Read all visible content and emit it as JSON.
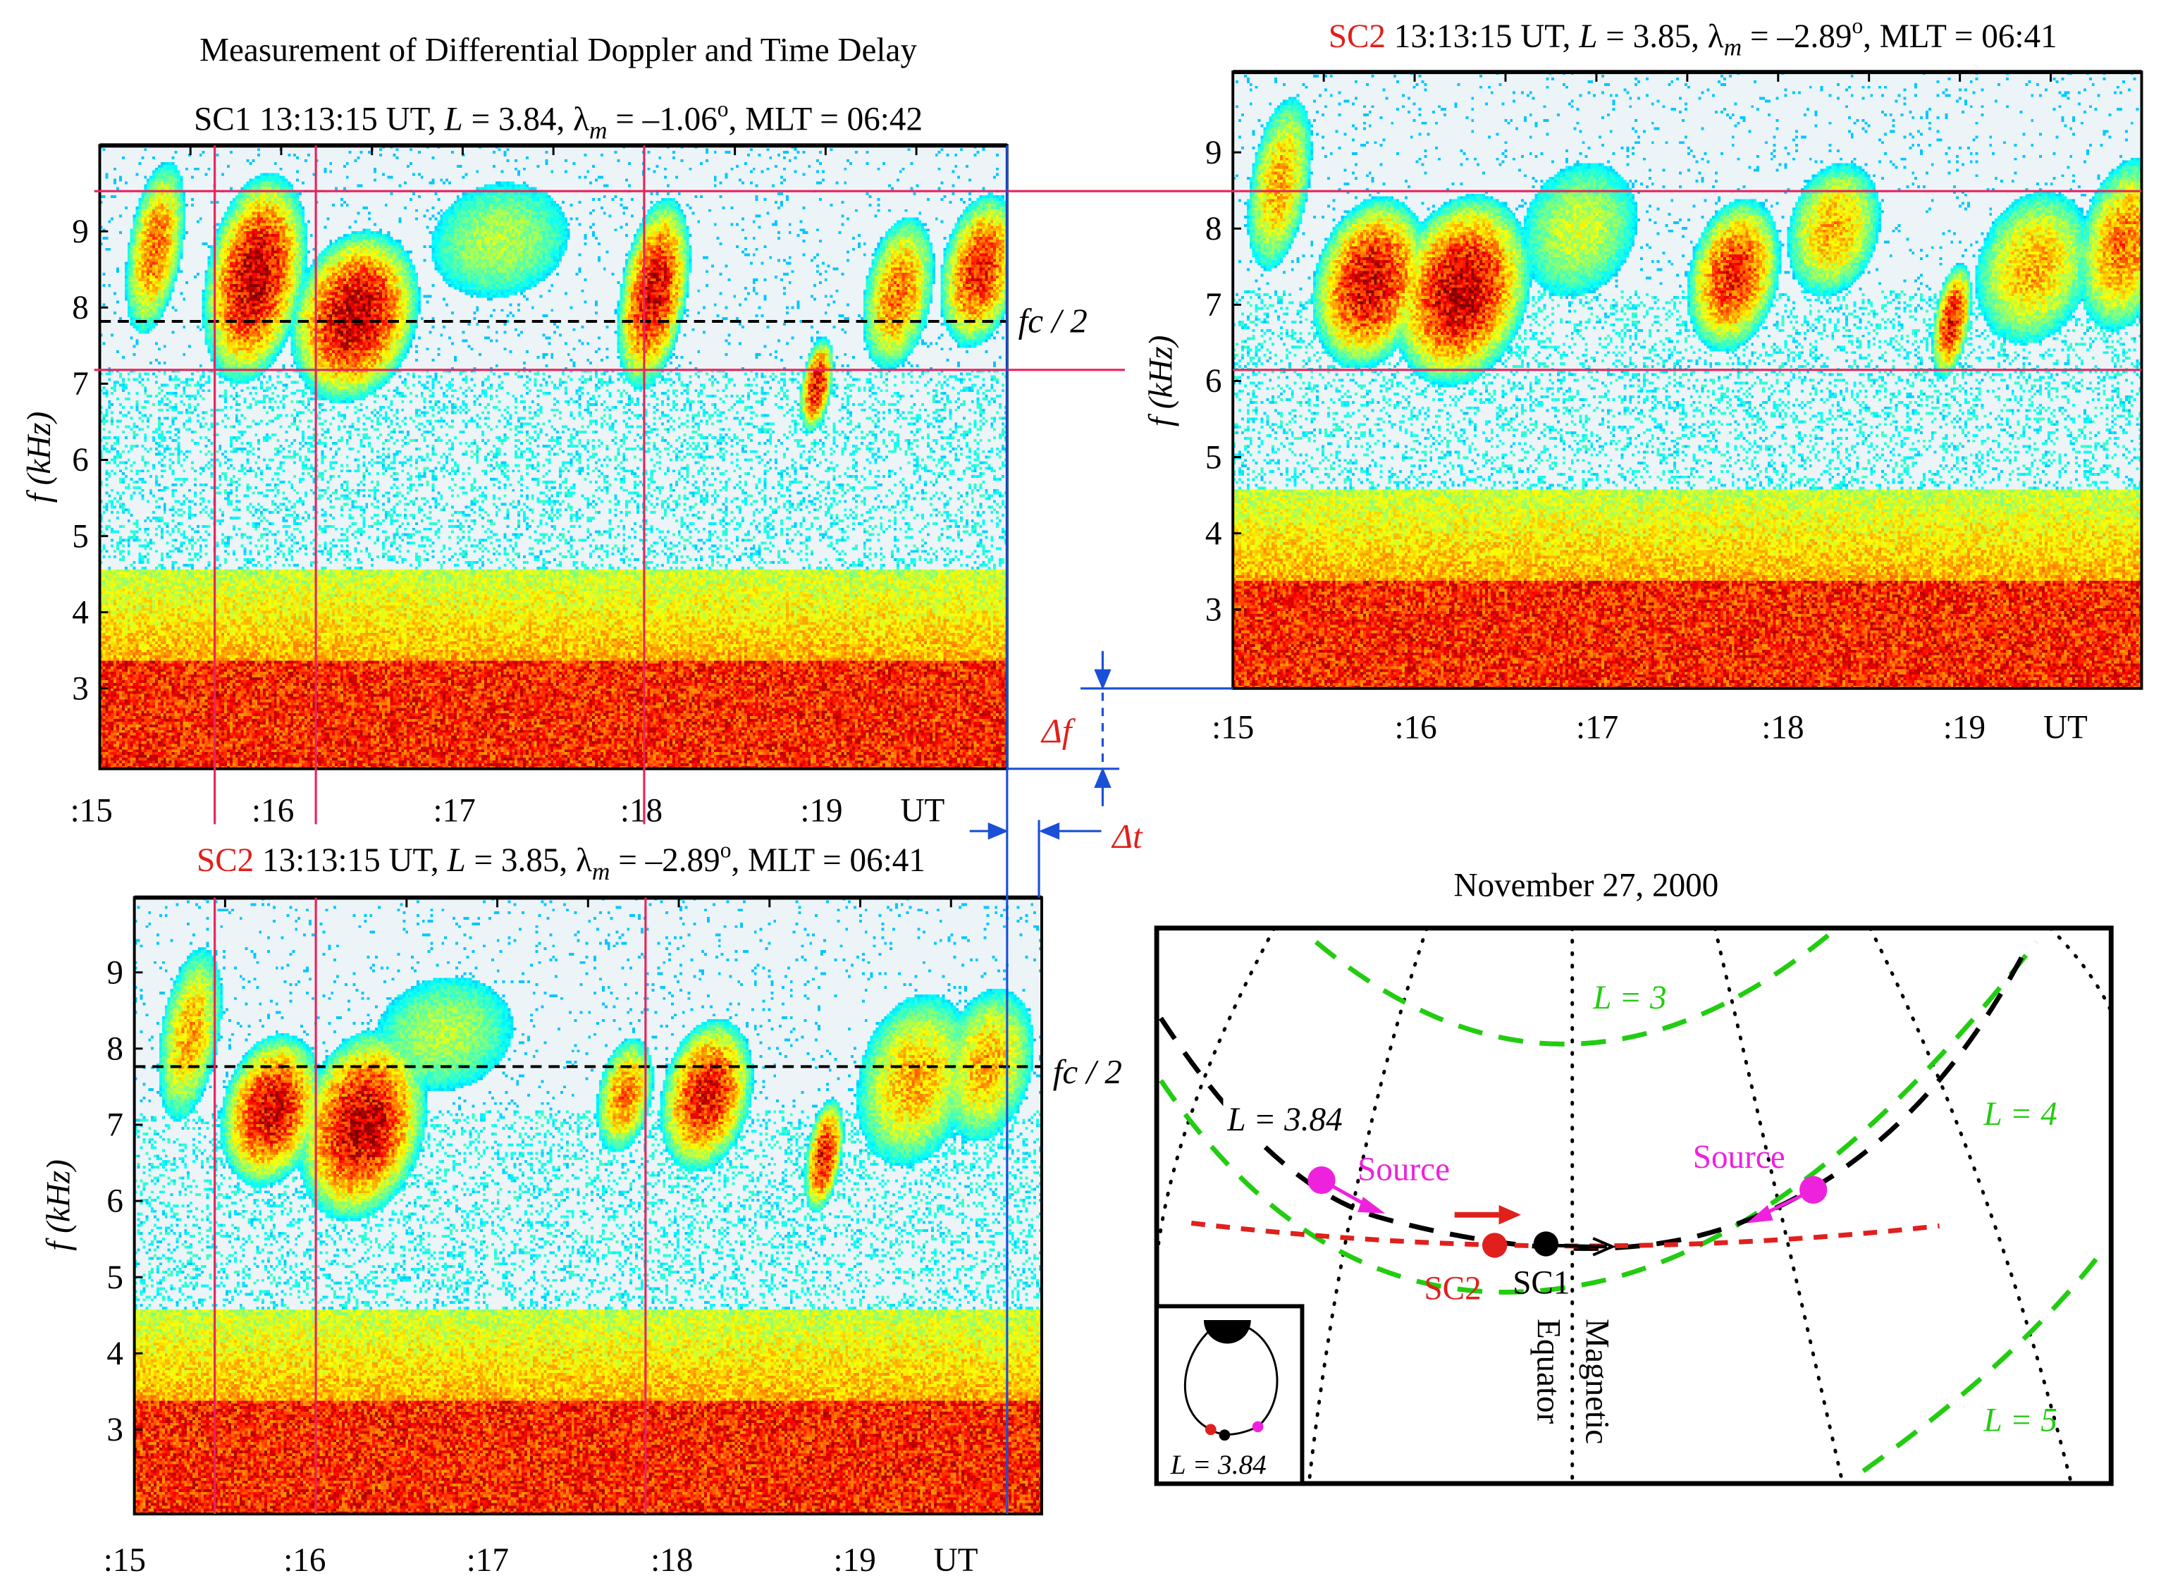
{
  "figure": {
    "title": "Measurement of Differential Doppler and Time Delay",
    "colors": {
      "marker_lines": "#e8245c",
      "delta_lines": "#1a4fd6",
      "delta_labels": "#e0201c",
      "sc2": "#e0201c",
      "source": "#ee22dd",
      "l_shells": "#22cc11"
    }
  },
  "chart_data": [
    {
      "type": "heatmap",
      "panel": "sc1-spectrogram",
      "header": {
        "spacecraft": "SC1",
        "time": "13:13:15 UT,",
        "L_label": "L",
        "L_value": "= 3.84,",
        "lambda": "λ",
        "lambda_sub": "m",
        "lambda_value": "= –1.06",
        "deg": "o",
        "mlt": ", MLT = 06:42"
      },
      "ylabel": "f (kHz)",
      "ytick_labels": [
        "3",
        "4",
        "5",
        "6",
        "7",
        "8",
        "9"
      ],
      "ylim_khz": [
        2,
        10
      ],
      "xtick_labels": [
        ":15",
        ":16",
        ":17",
        ":18",
        ":19"
      ],
      "xunit": "UT",
      "xlim_min": [
        15,
        20
      ],
      "annotation": "fc / 2",
      "fc_half_khz": 7.8
    },
    {
      "type": "heatmap",
      "panel": "sc2-spectrogram-top",
      "header": {
        "spacecraft": "SC2",
        "time": "13:13:15 UT,",
        "L_label": "L",
        "L_value": "= 3.85,",
        "lambda": "λ",
        "lambda_sub": "m",
        "lambda_value": "= –2.89",
        "deg": "o",
        "mlt": ", MLT = 06:41"
      },
      "ylabel": "f (kHz)",
      "ytick_labels": [
        "3",
        "4",
        "5",
        "6",
        "7",
        "8",
        "9"
      ],
      "ylim_khz": [
        2.9,
        10
      ],
      "xtick_labels": [
        ":15",
        ":16",
        ":17",
        ":18",
        ":19"
      ],
      "xunit": "UT",
      "xlim_min": [
        15,
        20
      ]
    },
    {
      "type": "heatmap",
      "panel": "sc2-spectrogram-bottom",
      "header": {
        "spacecraft": "SC2",
        "time": "13:13:15 UT,",
        "L_label": "L",
        "L_value": "= 3.85,",
        "lambda": "λ",
        "lambda_sub": "m",
        "lambda_value": "= –2.89",
        "deg": "o",
        "mlt": ", MLT = 06:41"
      },
      "ylabel": "f (kHz)",
      "ytick_labels": [
        "3",
        "4",
        "5",
        "6",
        "7",
        "8",
        "9"
      ],
      "ylim_khz": [
        2,
        10
      ],
      "xtick_labels": [
        ":15",
        ":16",
        ":17",
        ":18",
        ":19"
      ],
      "xunit": "UT",
      "xlim_min": [
        15,
        20
      ],
      "annotation": "fc / 2",
      "fc_half_khz": 7.8
    }
  ],
  "deltas": {
    "delta_f": "Δf",
    "delta_t": "Δt"
  },
  "diagram": {
    "date": "November 27, 2000",
    "l_shells": [
      "L = 3",
      "L = 4",
      "L = 5"
    ],
    "field_line_label": "L = 3.84",
    "source_left": "Source",
    "source_right": "Source",
    "sc2": "SC2",
    "sc1": "SC1",
    "equator_line1": "Magnetic",
    "equator_line2": "Equator",
    "inset_label": "L = 3.84"
  }
}
